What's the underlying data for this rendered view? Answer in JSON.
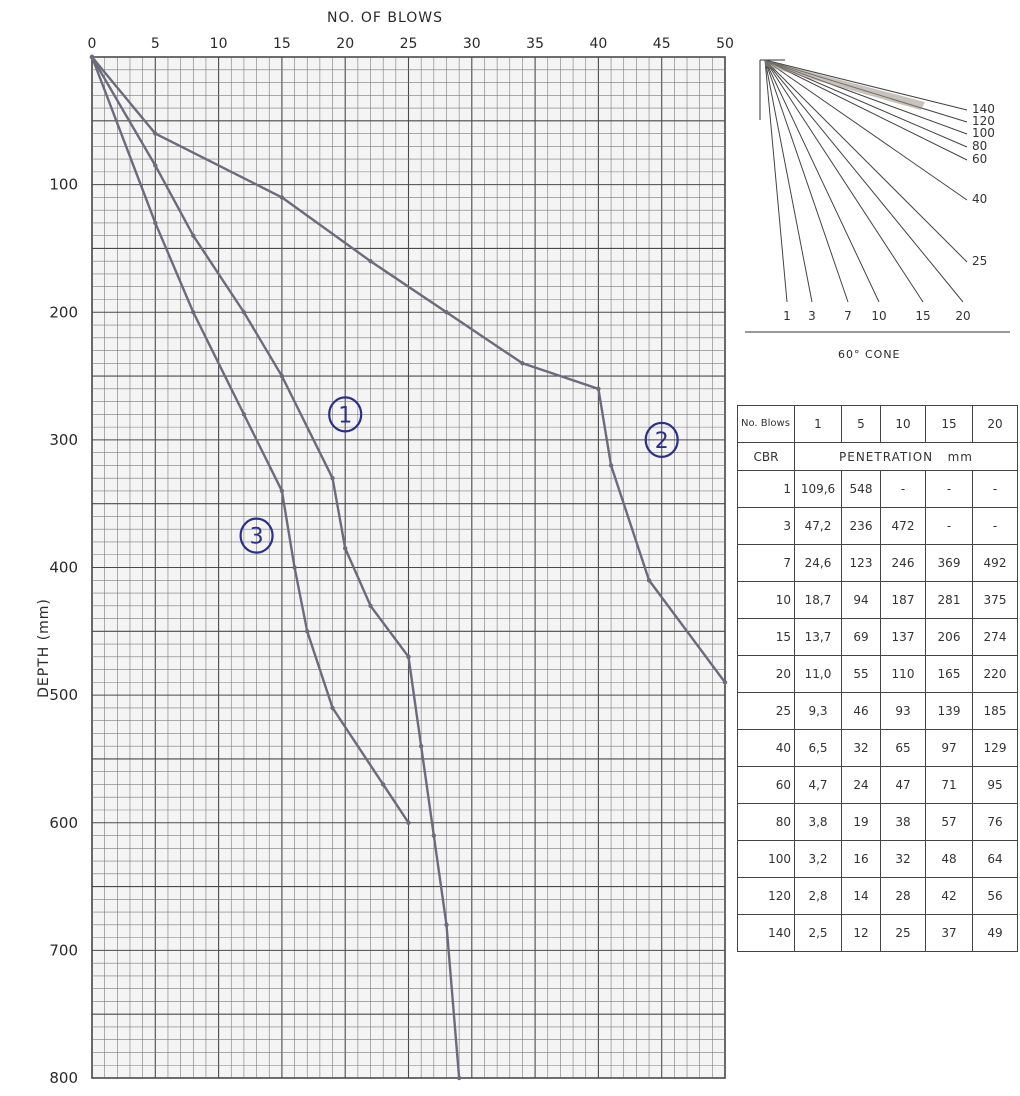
{
  "chart_data": {
    "type": "line",
    "xlabel": "NO. OF BLOWS",
    "ylabel": "DEPTH (mm)",
    "xlim": [
      0,
      50
    ],
    "ylim": [
      0,
      800
    ],
    "y_inverted": true,
    "x_ticks": [
      0,
      5,
      10,
      15,
      20,
      25,
      30,
      35,
      40,
      45,
      50
    ],
    "y_ticks": [
      100,
      200,
      300,
      400,
      500,
      600,
      700,
      800
    ],
    "grid": true,
    "series": [
      {
        "name": "1",
        "points": [
          [
            0,
            0
          ],
          [
            5,
            85
          ],
          [
            8,
            140
          ],
          [
            12,
            200
          ],
          [
            15,
            250
          ],
          [
            19,
            330
          ],
          [
            20,
            385
          ],
          [
            22,
            430
          ],
          [
            25,
            470
          ],
          [
            26,
            540
          ],
          [
            27,
            610
          ],
          [
            28,
            680
          ],
          [
            29,
            800
          ]
        ]
      },
      {
        "name": "2",
        "points": [
          [
            0,
            0
          ],
          [
            5,
            60
          ],
          [
            15,
            110
          ],
          [
            22,
            160
          ],
          [
            28,
            200
          ],
          [
            34,
            240
          ],
          [
            40,
            260
          ],
          [
            41,
            320
          ],
          [
            44,
            410
          ],
          [
            50,
            490
          ]
        ]
      },
      {
        "name": "3",
        "points": [
          [
            0,
            0
          ],
          [
            5,
            130
          ],
          [
            8,
            200
          ],
          [
            12,
            280
          ],
          [
            15,
            340
          ],
          [
            16,
            400
          ],
          [
            17,
            450
          ],
          [
            19,
            510
          ],
          [
            23,
            570
          ],
          [
            25,
            600
          ]
        ]
      }
    ],
    "series_markers": [
      {
        "label": "1",
        "x": 20,
        "y": 280
      },
      {
        "label": "2",
        "x": 45,
        "y": 300
      },
      {
        "label": "3",
        "x": 13,
        "y": 375
      }
    ]
  },
  "cone": {
    "caption": "60° CONE",
    "bottom_labels": [
      "1",
      "3",
      "7",
      "10",
      "15",
      "20"
    ],
    "right_labels": [
      "140",
      "120",
      "100",
      "80",
      "60",
      "40",
      "25"
    ]
  },
  "table": {
    "header_label": "No. Blows",
    "blows": [
      "1",
      "5",
      "10",
      "15",
      "20"
    ],
    "cbr_label": "CBR",
    "penetration_label": "PENETRATION   mm",
    "rows": [
      {
        "cbr": "1",
        "values": [
          "109,6",
          "548",
          "-",
          "-",
          "-"
        ]
      },
      {
        "cbr": "3",
        "values": [
          "47,2",
          "236",
          "472",
          "-",
          "-"
        ]
      },
      {
        "cbr": "7",
        "values": [
          "24,6",
          "123",
          "246",
          "369",
          "492"
        ]
      },
      {
        "cbr": "10",
        "values": [
          "18,7",
          "94",
          "187",
          "281",
          "375"
        ]
      },
      {
        "cbr": "15",
        "values": [
          "13,7",
          "69",
          "137",
          "206",
          "274"
        ]
      },
      {
        "cbr": "20",
        "values": [
          "11,0",
          "55",
          "110",
          "165",
          "220"
        ]
      },
      {
        "cbr": "25",
        "values": [
          "9,3",
          "46",
          "93",
          "139",
          "185"
        ]
      },
      {
        "cbr": "40",
        "values": [
          "6,5",
          "32",
          "65",
          "97",
          "129"
        ]
      },
      {
        "cbr": "60",
        "values": [
          "4,7",
          "24",
          "47",
          "71",
          "95"
        ]
      },
      {
        "cbr": "80",
        "values": [
          "3,8",
          "19",
          "38",
          "57",
          "76"
        ]
      },
      {
        "cbr": "100",
        "values": [
          "3,2",
          "16",
          "32",
          "48",
          "64"
        ]
      },
      {
        "cbr": "120",
        "values": [
          "2,8",
          "14",
          "28",
          "42",
          "56"
        ]
      },
      {
        "cbr": "140",
        "values": [
          "2,5",
          "12",
          "25",
          "37",
          "49"
        ]
      }
    ]
  },
  "colors": {
    "grid_major": "#4a4a4a",
    "grid_minor": "#7a7a7a",
    "grid_bg": "#f4f4f4",
    "curve": "#6b6b7b",
    "marker_ink": "#2c2f8a",
    "text": "#2a2a2a"
  }
}
